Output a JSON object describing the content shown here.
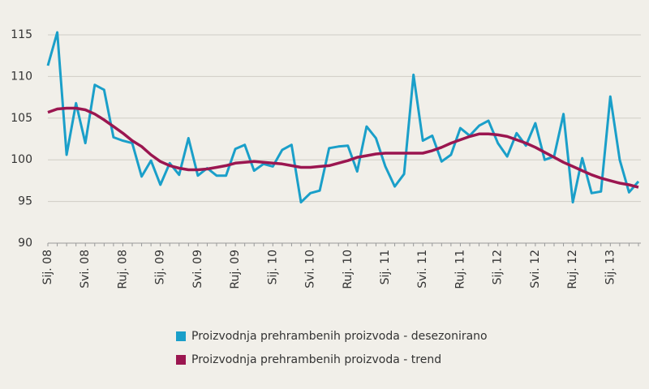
{
  "chart_data": {
    "type": "line",
    "categories": [
      "Sij. 08",
      null,
      null,
      null,
      "Svi. 08",
      null,
      null,
      null,
      "Ruj. 08",
      null,
      null,
      null,
      "Sij. 09",
      null,
      null,
      null,
      "Svi. 09",
      null,
      null,
      null,
      "Ruj. 09",
      null,
      null,
      null,
      "Sij. 10",
      null,
      null,
      null,
      "Svi. 10",
      null,
      null,
      null,
      "Ruj. 10",
      null,
      null,
      null,
      "Sij. 11",
      null,
      null,
      null,
      "Svi. 11",
      null,
      null,
      null,
      "Ruj. 11",
      null,
      null,
      null,
      "Sij. 12",
      null,
      null,
      null,
      "Svi. 12",
      null,
      null,
      null,
      "Ruj. 12",
      null,
      null,
      null,
      "Sij. 13",
      null,
      null,
      null
    ],
    "series": [
      {
        "name": "Proizvodnja prehrambenih proizvoda - desezonirano",
        "color": "#1a9fc9",
        "values": [
          111.3,
          115.3,
          100.6,
          106.8,
          102,
          109,
          108.4,
          102.7,
          102.3,
          102,
          98,
          99.9,
          97,
          99.6,
          98.2,
          102.6,
          98.1,
          99,
          98.1,
          98.1,
          101.3,
          101.8,
          98.7,
          99.5,
          99.2,
          101.2,
          101.8,
          94.9,
          96,
          96.3,
          101.4,
          101.6,
          101.7,
          98.6,
          104,
          102.6,
          99.2,
          96.8,
          98.3,
          110.2,
          102.3,
          102.9,
          99.8,
          100.6,
          103.8,
          102.9,
          104.1,
          104.7,
          102,
          100.4,
          103.2,
          101.7,
          104.4,
          100,
          100.4,
          105.5,
          94.9,
          100.2,
          96,
          96.2,
          107.6,
          100,
          96.1,
          97.4
        ]
      },
      {
        "name": "Proizvodnja prehrambenih proizvoda - trend",
        "color": "#9b1650",
        "values": [
          105.7,
          106.1,
          106.2,
          106.2,
          106,
          105.5,
          104.8,
          104,
          103.2,
          102.3,
          101.6,
          100.6,
          99.8,
          99.3,
          99,
          98.8,
          98.8,
          98.9,
          99.1,
          99.3,
          99.6,
          99.7,
          99.8,
          99.7,
          99.6,
          99.5,
          99.3,
          99.1,
          99.1,
          99.2,
          99.3,
          99.6,
          99.9,
          100.3,
          100.5,
          100.7,
          100.8,
          100.8,
          100.8,
          100.8,
          100.8,
          101.1,
          101.5,
          102,
          102.4,
          102.8,
          103.1,
          103.1,
          103,
          102.8,
          102.4,
          102,
          101.5,
          100.9,
          100.3,
          99.7,
          99.2,
          98.7,
          98.2,
          97.8,
          97.5,
          97.2,
          97,
          96.7
        ]
      }
    ],
    "ylim": [
      90,
      115
    ],
    "yticks": [
      90,
      95,
      100,
      105,
      110,
      115
    ],
    "grid": true
  }
}
